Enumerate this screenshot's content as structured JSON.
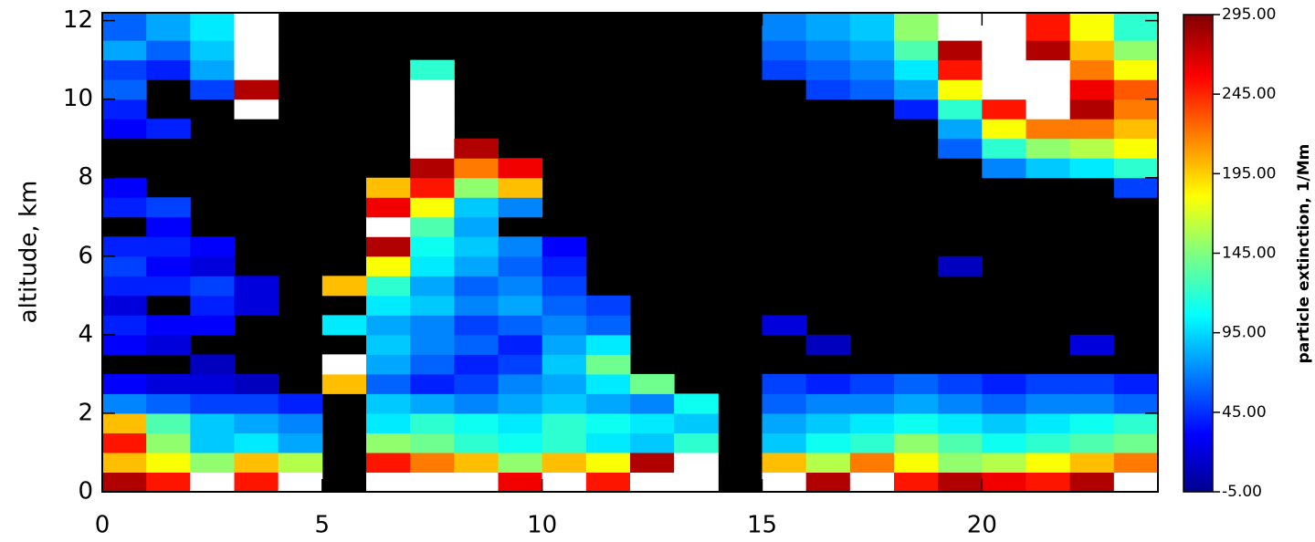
{
  "chart_data": {
    "type": "heatmap",
    "y_label": "altitude, km",
    "xlim": [
      0,
      24
    ],
    "xticks": [
      0,
      5,
      10,
      15,
      20
    ],
    "ylim": [
      0,
      12.2
    ],
    "yticks": [
      0,
      2,
      4,
      6,
      8,
      10,
      12
    ],
    "xbins": [
      0,
      1,
      2,
      3,
      4,
      5,
      6,
      7,
      8,
      9,
      10,
      11,
      12,
      13,
      14,
      15,
      16,
      17,
      18,
      19,
      20,
      21,
      22,
      23,
      24
    ],
    "ybins": [
      0,
      0.5,
      1,
      1.5,
      2,
      2.5,
      3,
      3.5,
      4,
      4.5,
      5,
      5.5,
      6,
      6.5,
      7,
      7.5,
      8,
      8.5,
      9,
      9.5,
      10,
      10.5,
      11,
      11.5,
      12.2
    ],
    "z": [
      [
        280,
        250,
        320,
        250,
        300,
        null,
        320,
        320,
        300,
        260,
        300,
        250,
        320,
        320,
        null,
        320,
        280,
        300,
        250,
        280,
        260,
        250,
        280,
        300
      ],
      [
        200,
        180,
        150,
        200,
        160,
        null,
        250,
        220,
        200,
        150,
        200,
        180,
        280,
        300,
        null,
        200,
        160,
        220,
        180,
        150,
        160,
        180,
        200,
        220
      ],
      [
        250,
        150,
        90,
        100,
        80,
        null,
        150,
        140,
        120,
        110,
        120,
        100,
        90,
        120,
        null,
        90,
        110,
        120,
        150,
        130,
        110,
        120,
        130,
        140
      ],
      [
        200,
        130,
        90,
        80,
        70,
        null,
        100,
        120,
        110,
        100,
        120,
        110,
        100,
        90,
        null,
        80,
        90,
        100,
        110,
        100,
        90,
        100,
        110,
        120
      ],
      [
        70,
        60,
        50,
        50,
        40,
        null,
        90,
        80,
        70,
        80,
        90,
        80,
        70,
        110,
        null,
        60,
        70,
        70,
        80,
        70,
        60,
        70,
        70,
        60
      ],
      [
        30,
        20,
        20,
        10,
        null,
        200,
        60,
        40,
        50,
        70,
        80,
        100,
        140,
        null,
        null,
        50,
        40,
        50,
        60,
        50,
        40,
        50,
        50,
        40
      ],
      [
        null,
        null,
        10,
        null,
        null,
        320,
        80,
        60,
        40,
        50,
        90,
        140,
        null,
        null,
        null,
        null,
        null,
        null,
        null,
        null,
        null,
        null,
        null,
        null
      ],
      [
        30,
        20,
        null,
        null,
        null,
        null,
        90,
        70,
        60,
        40,
        80,
        100,
        null,
        null,
        null,
        null,
        10,
        null,
        null,
        null,
        null,
        null,
        20,
        null
      ],
      [
        40,
        30,
        30,
        null,
        null,
        100,
        80,
        70,
        50,
        60,
        70,
        60,
        null,
        null,
        null,
        20,
        null,
        null,
        null,
        null,
        null,
        null,
        null,
        null
      ],
      [
        20,
        null,
        40,
        20,
        null,
        null,
        100,
        90,
        70,
        80,
        60,
        50,
        null,
        null,
        null,
        null,
        null,
        null,
        null,
        null,
        null,
        null,
        null,
        null
      ],
      [
        40,
        40,
        50,
        20,
        null,
        200,
        120,
        80,
        60,
        70,
        50,
        null,
        null,
        null,
        null,
        null,
        null,
        null,
        null,
        null,
        null,
        null,
        null,
        null
      ],
      [
        50,
        30,
        20,
        null,
        null,
        null,
        180,
        100,
        80,
        60,
        40,
        null,
        null,
        null,
        null,
        null,
        null,
        null,
        null,
        10,
        null,
        null,
        null,
        null
      ],
      [
        40,
        40,
        30,
        null,
        null,
        null,
        280,
        110,
        90,
        70,
        30,
        null,
        null,
        null,
        null,
        null,
        null,
        null,
        null,
        null,
        null,
        null,
        null,
        null
      ],
      [
        null,
        30,
        null,
        null,
        null,
        null,
        320,
        130,
        80,
        null,
        null,
        null,
        null,
        null,
        null,
        null,
        null,
        null,
        null,
        null,
        null,
        null,
        null,
        null
      ],
      [
        40,
        50,
        null,
        null,
        null,
        null,
        260,
        180,
        90,
        70,
        null,
        null,
        null,
        null,
        null,
        null,
        null,
        null,
        null,
        null,
        null,
        null,
        null,
        null
      ],
      [
        30,
        null,
        null,
        null,
        null,
        null,
        200,
        250,
        150,
        200,
        null,
        null,
        null,
        null,
        null,
        null,
        null,
        null,
        null,
        null,
        null,
        null,
        null,
        50
      ],
      [
        null,
        null,
        null,
        null,
        null,
        null,
        null,
        280,
        220,
        260,
        null,
        null,
        null,
        null,
        null,
        null,
        null,
        null,
        null,
        null,
        70,
        90,
        100,
        120
      ],
      [
        null,
        null,
        null,
        null,
        null,
        null,
        null,
        320,
        280,
        null,
        null,
        null,
        null,
        null,
        null,
        null,
        null,
        null,
        null,
        60,
        120,
        150,
        160,
        180
      ],
      [
        30,
        40,
        null,
        null,
        null,
        null,
        null,
        320,
        null,
        null,
        null,
        null,
        null,
        null,
        null,
        null,
        null,
        null,
        null,
        80,
        180,
        220,
        220,
        200
      ],
      [
        40,
        null,
        null,
        300,
        null,
        null,
        null,
        320,
        null,
        null,
        null,
        null,
        null,
        null,
        null,
        null,
        null,
        null,
        40,
        120,
        250,
        320,
        280,
        220
      ],
      [
        60,
        null,
        50,
        280,
        null,
        null,
        null,
        320,
        null,
        null,
        null,
        null,
        null,
        null,
        null,
        null,
        50,
        60,
        80,
        180,
        320,
        320,
        260,
        230
      ],
      [
        50,
        40,
        80,
        320,
        null,
        null,
        null,
        120,
        null,
        null,
        null,
        null,
        null,
        null,
        null,
        50,
        60,
        70,
        100,
        250,
        320,
        320,
        220,
        180
      ],
      [
        80,
        60,
        90,
        320,
        null,
        null,
        null,
        null,
        null,
        null,
        null,
        null,
        null,
        null,
        null,
        60,
        70,
        80,
        130,
        280,
        320,
        280,
        200,
        150
      ],
      [
        60,
        80,
        100,
        320,
        null,
        null,
        null,
        null,
        null,
        null,
        null,
        null,
        null,
        null,
        null,
        70,
        80,
        90,
        150,
        300,
        320,
        250,
        180,
        120
      ]
    ],
    "colorbar": {
      "label": "particle extinction, 1/Mm",
      "zlim": [
        -5,
        295
      ],
      "zticks": [
        {
          "value": -5,
          "label": "-5.00"
        },
        {
          "value": 45,
          "label": "45.00"
        },
        {
          "value": 95,
          "label": "95.00"
        },
        {
          "value": 145,
          "label": "145.00"
        },
        {
          "value": 195,
          "label": "195.00"
        },
        {
          "value": 245,
          "label": "245.00"
        },
        {
          "value": 295,
          "label": "295.00"
        }
      ]
    }
  }
}
